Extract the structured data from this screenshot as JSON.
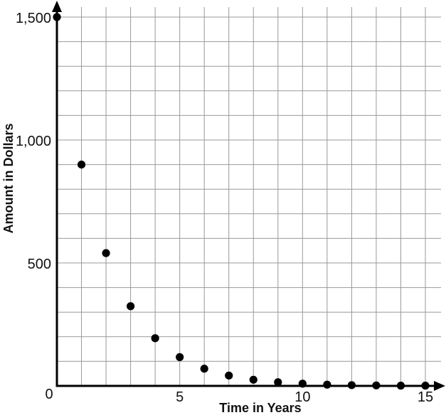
{
  "chart_data": {
    "type": "scatter",
    "title": "",
    "xlabel": "Time in Years",
    "ylabel": "Amount in Dollars",
    "x": [
      0,
      1,
      2,
      3,
      4,
      5,
      6,
      7,
      8,
      9,
      10,
      11,
      12,
      13,
      14,
      15
    ],
    "y": [
      1500,
      900,
      540,
      324,
      194,
      117,
      70,
      42,
      25,
      15,
      9,
      5,
      3,
      2,
      1,
      1
    ],
    "xlim": [
      0,
      15
    ],
    "ylim": [
      0,
      1500
    ],
    "xticks": {
      "values": [
        0,
        5,
        10,
        15
      ],
      "labels": [
        "0",
        "5",
        "10",
        "15"
      ]
    },
    "yticks": {
      "values": [
        500,
        1000,
        1500
      ],
      "labels": [
        "500",
        "1,000",
        "1,500"
      ]
    },
    "grid": {
      "on": true,
      "x_step_years": 1,
      "y_step_dollars": 100
    },
    "legend": "none",
    "colors": {
      "point": "#000000",
      "axis": "#000000",
      "gridline": "#999999",
      "background": "#ffffff"
    }
  }
}
